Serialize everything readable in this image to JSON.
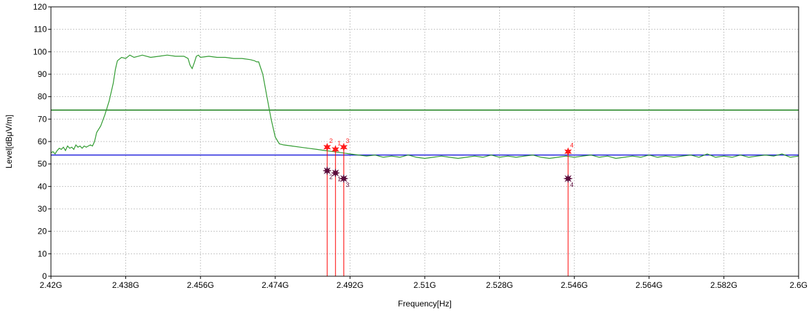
{
  "chart_data": {
    "type": "line",
    "xlabel": "Frequency[Hz]",
    "ylabel": "Level[dBμV/m]",
    "xlim": [
      2.42,
      2.6
    ],
    "ylim": [
      0,
      120
    ],
    "x_ticks": [
      {
        "value": 2.42,
        "label": "2.42G"
      },
      {
        "value": 2.438,
        "label": "2.438G"
      },
      {
        "value": 2.456,
        "label": "2.456G"
      },
      {
        "value": 2.474,
        "label": "2.474G"
      },
      {
        "value": 2.492,
        "label": "2.492G"
      },
      {
        "value": 2.51,
        "label": "2.51G"
      },
      {
        "value": 2.528,
        "label": "2.528G"
      },
      {
        "value": 2.546,
        "label": "2.546G"
      },
      {
        "value": 2.564,
        "label": "2.564G"
      },
      {
        "value": 2.582,
        "label": "2.582G"
      },
      {
        "value": 2.6,
        "label": "2.6G"
      }
    ],
    "y_ticks": [
      0,
      10,
      20,
      30,
      40,
      50,
      60,
      70,
      80,
      90,
      100,
      110,
      120
    ],
    "grid": true,
    "colors": {
      "trace": "#2e9a2e",
      "limit_peak": "#1a7f1a",
      "limit_avg": "#2222dd",
      "marker_line": "#ff0000",
      "peak_marker": "#ff1a1a",
      "avg_marker": "#5a0a3a"
    },
    "limit_lines": [
      {
        "value": 74,
        "color": "#1a7f1a"
      },
      {
        "value": 54,
        "color": "#2222dd"
      }
    ],
    "series": [
      {
        "color": "#2e9a2e",
        "x": [
          2.42,
          2.4205,
          2.421,
          2.4215,
          2.422,
          2.4225,
          2.423,
          2.4235,
          2.424,
          2.4245,
          2.425,
          2.4255,
          2.426,
          2.4265,
          2.427,
          2.4275,
          2.428,
          2.4285,
          2.429,
          2.4295,
          2.43,
          2.4305,
          2.431,
          2.432,
          2.433,
          2.434,
          2.435,
          2.4355,
          2.436,
          2.437,
          2.438,
          2.439,
          2.44,
          2.441,
          2.442,
          2.444,
          2.446,
          2.448,
          2.45,
          2.452,
          2.453,
          2.4535,
          2.454,
          2.4545,
          2.455,
          2.4555,
          2.456,
          2.458,
          2.46,
          2.462,
          2.464,
          2.466,
          2.468,
          2.469,
          2.4695,
          2.47,
          2.471,
          2.472,
          2.473,
          2.474,
          2.475,
          2.476,
          2.478,
          2.48,
          2.482,
          2.484,
          2.486,
          2.488,
          2.49,
          2.492,
          2.494,
          2.496,
          2.498,
          2.5,
          2.502,
          2.504,
          2.506,
          2.508,
          2.51,
          2.512,
          2.514,
          2.516,
          2.518,
          2.52,
          2.522,
          2.524,
          2.526,
          2.528,
          2.53,
          2.532,
          2.534,
          2.536,
          2.538,
          2.54,
          2.542,
          2.544,
          2.546,
          2.548,
          2.55,
          2.552,
          2.554,
          2.556,
          2.558,
          2.56,
          2.562,
          2.564,
          2.566,
          2.568,
          2.57,
          2.572,
          2.574,
          2.576,
          2.578,
          2.58,
          2.582,
          2.584,
          2.586,
          2.588,
          2.59,
          2.592,
          2.594,
          2.596,
          2.598,
          2.6
        ],
        "y": [
          55,
          55.5,
          54.5,
          56,
          57,
          56.5,
          57.5,
          56,
          58,
          57,
          57.5,
          56.5,
          58.5,
          57.5,
          58,
          57,
          58,
          57.5,
          58,
          58.5,
          58,
          60,
          64,
          67,
          72,
          78,
          86,
          92,
          96,
          97.5,
          97,
          98.5,
          97.5,
          98,
          98.5,
          97.5,
          98,
          98.5,
          98,
          98,
          97,
          94,
          92.5,
          95,
          98,
          98.5,
          97.5,
          98,
          97.5,
          97.5,
          97,
          97,
          96.5,
          96,
          95.5,
          95.5,
          90,
          80,
          70,
          62,
          59,
          58.5,
          58,
          57.5,
          57,
          56.5,
          56,
          55.5,
          55,
          54.5,
          54,
          53.5,
          54,
          53,
          53.5,
          53,
          54,
          53,
          52.5,
          53,
          53.5,
          53,
          52.5,
          53,
          53.5,
          53,
          54,
          53,
          53.5,
          53,
          53.5,
          54,
          53,
          52.5,
          53,
          53.5,
          53,
          53.5,
          54,
          53,
          53.5,
          52.5,
          53,
          53.5,
          53,
          54,
          53,
          53.5,
          53,
          53.5,
          54,
          53,
          54.5,
          53,
          53.5,
          53,
          54,
          53,
          53.5,
          54,
          53.5,
          54.5,
          53,
          53.5
        ]
      }
    ],
    "markers": [
      {
        "label": "1",
        "x": 2.4885,
        "peak": 56.5,
        "avg": 46.0
      },
      {
        "label": "2",
        "x": 2.4865,
        "peak": 57.5,
        "avg": 47.0
      },
      {
        "label": "3",
        "x": 2.4905,
        "peak": 57.5,
        "avg": 43.5
      },
      {
        "label": "4",
        "x": 2.5445,
        "peak": 55.5,
        "avg": 43.5
      }
    ]
  }
}
